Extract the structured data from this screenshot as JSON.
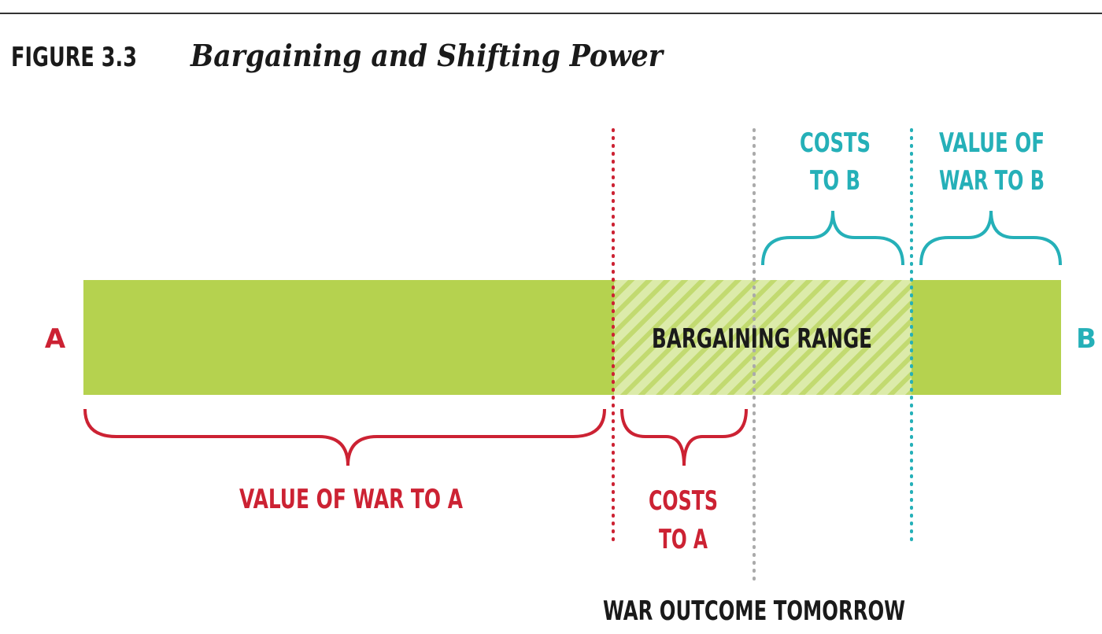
{
  "figure": {
    "number": "FIGURE 3.3",
    "title": "Bargaining and Shifting Power"
  },
  "diagram": {
    "endpoint_a": "A",
    "endpoint_b": "B",
    "bargaining_range": "BARGAINING RANGE",
    "value_of_war_to_a": "VALUE OF WAR TO A",
    "costs_to_a": [
      "COSTS",
      "TO A"
    ],
    "costs_to_b": [
      "COSTS",
      "TO B"
    ],
    "value_of_war_to_b": [
      "VALUE OF",
      "WAR TO B"
    ],
    "war_outcome_tomorrow": "WAR OUTCOME TOMORROW"
  },
  "colors": {
    "bar_green": "#b5d24f",
    "hatch_light": "#dcebaa",
    "party_a_red": "#cc2233",
    "party_b_teal": "#25b0b8",
    "neutral_gray": "#aaaaaa",
    "text_dark": "#1a1a1a"
  }
}
